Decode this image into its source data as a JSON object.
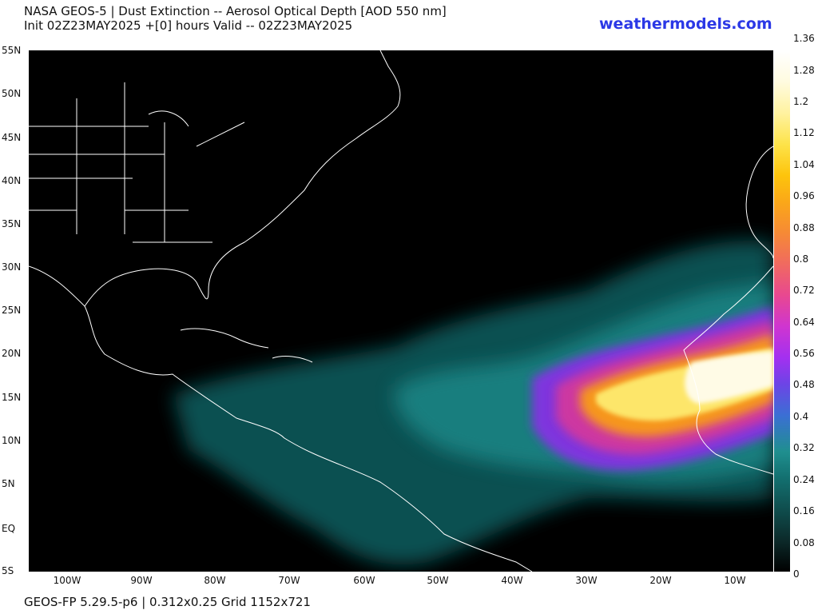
{
  "title_line1": "NASA GEOS-5 | Dust Extinction -- Aerosol Optical Depth [AOD 550 nm]",
  "title_line2": "Init 02Z23MAY2025 +[0] hours Valid -- 02Z23MAY2025",
  "brand": "weathermodels.com",
  "footer": "GEOS-FP 5.29.5-p6 | 0.312x0.25 Grid 1152x721",
  "lat_labels": [
    "55N",
    "50N",
    "45N",
    "40N",
    "35N",
    "30N",
    "25N",
    "20N",
    "15N",
    "10N",
    "5N",
    "EQ",
    "5S"
  ],
  "lon_labels": [
    "100W",
    "90W",
    "80W",
    "70W",
    "60W",
    "50W",
    "40W",
    "30W",
    "20W",
    "10W"
  ],
  "colorbar_labels": [
    "1.36",
    "1.28",
    "1.2",
    "1.12",
    "1.04",
    "0.96",
    "0.88",
    "0.8",
    "0.72",
    "0.64",
    "0.56",
    "0.48",
    "0.4",
    "0.32",
    "0.24",
    "0.16",
    "0.08",
    "0"
  ],
  "colors": {
    "brand": "#2b38e6",
    "background": "#000000",
    "coastline": "#ffffff"
  }
}
